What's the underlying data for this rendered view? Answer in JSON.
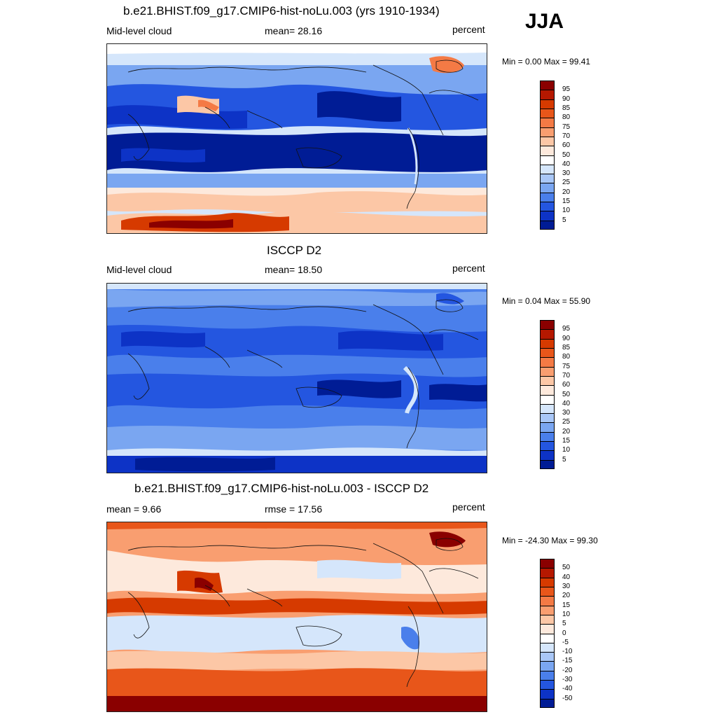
{
  "season": "JJA",
  "panels": [
    {
      "title": "b.e21.BHIST.f09_g17.CMIP6-hist-noLu.003 (yrs 1910-1934)",
      "left_label": "Mid-level cloud",
      "center_label": "mean=  28.16",
      "right_label": "percent",
      "minmax": "Min =   0.00 Max =  99.41",
      "scheme": "blue-red",
      "labels": [
        "95",
        "90",
        "85",
        "80",
        "75",
        "70",
        "60",
        "50",
        "40",
        "30",
        "25",
        "20",
        "15",
        "10",
        "5"
      ],
      "colors": [
        "#8a0000",
        "#b51800",
        "#d63a00",
        "#e8561a",
        "#f47a45",
        "#f99e70",
        "#fcc7a6",
        "#fde9dc",
        "#ffffff",
        "#d5e6fb",
        "#a9c7f7",
        "#7aa6f1",
        "#4a7feb",
        "#2456e0",
        "#0d33c6",
        "#001c95"
      ]
    },
    {
      "title": "ISCCP D2",
      "left_label": "Mid-level cloud",
      "center_label": "mean=  18.50",
      "right_label": "percent",
      "minmax": "Min =   0.04 Max =  55.90",
      "scheme": "blue-red",
      "labels": [
        "95",
        "90",
        "85",
        "80",
        "75",
        "70",
        "60",
        "50",
        "40",
        "30",
        "25",
        "20",
        "15",
        "10",
        "5"
      ],
      "colors": [
        "#8a0000",
        "#b51800",
        "#d63a00",
        "#e8561a",
        "#f47a45",
        "#f99e70",
        "#fcc7a6",
        "#fde9dc",
        "#ffffff",
        "#d5e6fb",
        "#a9c7f7",
        "#7aa6f1",
        "#4a7feb",
        "#2456e0",
        "#0d33c6",
        "#001c95"
      ]
    },
    {
      "title": "b.e21.BHIST.f09_g17.CMIP6-hist-noLu.003 - ISCCP D2",
      "left_label": "mean =   9.66",
      "center_label": "rmse =  17.56",
      "right_label": "percent",
      "minmax": "Min = -24.30 Max =  99.30",
      "scheme": "diff",
      "labels": [
        "50",
        "40",
        "30",
        "20",
        "15",
        "10",
        "5",
        "0",
        "-5",
        "-10",
        "-15",
        "-20",
        "-30",
        "-40",
        "-50"
      ],
      "colors": [
        "#8a0000",
        "#b51800",
        "#d63a00",
        "#e8561a",
        "#f47a45",
        "#f99e70",
        "#fcc7a6",
        "#fde9dc",
        "#ffffff",
        "#d5e6fb",
        "#a9c7f7",
        "#7aa6f1",
        "#4a7feb",
        "#2456e0",
        "#0d33c6",
        "#001c95"
      ]
    }
  ]
}
